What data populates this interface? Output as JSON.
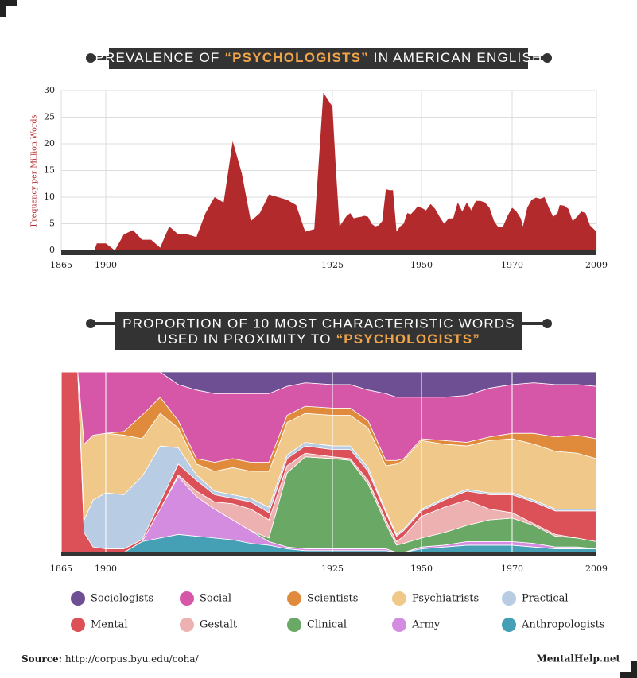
{
  "chart_data": [
    {
      "type": "area",
      "title": [
        "PREVALENCE OF",
        "“PSYCHOLOGISTS”",
        "IN AMERICAN ENGLISH"
      ],
      "ylabel": "Frequency per Million Words",
      "color": "#b22a2c",
      "grid": true,
      "x": [
        1865,
        1891,
        1893,
        1900,
        1901,
        1902,
        1903,
        1904,
        1905,
        1906,
        1907,
        1908,
        1909,
        1910,
        1911,
        1912,
        1913,
        1914,
        1915,
        1916,
        1917,
        1918,
        1919,
        1920,
        1921,
        1922,
        1923,
        1924,
        1925,
        1926,
        1927,
        1928,
        1929,
        1930,
        1931,
        1932,
        1933,
        1934,
        1935,
        1936,
        1937,
        1938,
        1939,
        1940,
        1941,
        1942,
        1943,
        1944,
        1945,
        1946,
        1947,
        1948,
        1949,
        1950,
        1951,
        1952,
        1953,
        1954,
        1955,
        1956,
        1957,
        1958,
        1959,
        1960,
        1961,
        1962,
        1963,
        1964,
        1965,
        1966,
        1967,
        1968,
        1969,
        1970,
        1972,
        1974,
        1975,
        1977,
        1979,
        1981,
        1983,
        1985,
        1987,
        1989,
        1991,
        1992,
        1994,
        1996,
        1998,
        2000,
        2002,
        2004,
        2006,
        2009
      ],
      "values": [
        0,
        0,
        1.3,
        1.3,
        0,
        3,
        3.8,
        2,
        2,
        0.5,
        4.5,
        3,
        3,
        2.5,
        7,
        10,
        9,
        20.5,
        14.5,
        5.5,
        7,
        10.5,
        10,
        9.5,
        8.5,
        3.5,
        4,
        29.6,
        27,
        15,
        4.5,
        5.5,
        6.5,
        7,
        6,
        6.2,
        6.3,
        6.5,
        6.3,
        5,
        4.5,
        4.7,
        5.5,
        11.5,
        11.3,
        11.3,
        3.5,
        4.5,
        5,
        7,
        6.8,
        7.5,
        8.3,
        8,
        7.5,
        8.7,
        7.8,
        6.3,
        5,
        6,
        6,
        9,
        7.3,
        9,
        7.5,
        9.3,
        9.3,
        9,
        8,
        5.5,
        4.3,
        4.5,
        6.5,
        8,
        7.3,
        6,
        4.5,
        8,
        9.5,
        9.9,
        9.7,
        10,
        8,
        6.3,
        7,
        8.5,
        8.4,
        7.8,
        5.5,
        6.3,
        7.3,
        7,
        4.7,
        3.5
      ],
      "xlim": [
        1865,
        2009
      ],
      "xticks": [
        1865,
        1900,
        1925,
        1950,
        1970,
        2009
      ],
      "ylim": [
        0,
        30
      ],
      "yticks": [
        0,
        5,
        10,
        15,
        20,
        25,
        30
      ]
    },
    {
      "type": "stacked_area",
      "title": [
        "PROPORTION OF 10 MOST CHARACTERISTIC WORDS",
        "USED IN PROXIMITY TO",
        "“PSYCHOLOGISTS”"
      ],
      "x": [
        1865,
        1878,
        1883,
        1890,
        1900,
        1902,
        1904,
        1906,
        1908,
        1910,
        1912,
        1914,
        1916,
        1918,
        1920,
        1922,
        1925,
        1930,
        1935,
        1940,
        1943,
        1945,
        1950,
        1955,
        1960,
        1965,
        1970,
        1980,
        1990,
        2000,
        2009
      ],
      "xlim": [
        1865,
        2009
      ],
      "xticks": [
        1865,
        1900,
        1925,
        1950,
        1970,
        2009
      ],
      "ylim": [
        0,
        100
      ],
      "series": [
        {
          "name": "Sociologists",
          "color": "#6e4f93",
          "values": [
            0,
            0,
            0,
            0,
            0,
            0,
            0,
            0,
            7,
            10,
            12,
            12,
            12,
            12,
            8,
            6,
            7,
            7,
            10,
            12,
            14,
            14,
            14,
            14,
            13,
            9,
            7,
            6,
            7,
            7,
            8
          ]
        },
        {
          "name": "Social",
          "color": "#d656a8",
          "values": [
            0,
            0,
            40,
            35,
            34,
            33,
            24,
            14,
            20,
            38,
            38,
            36,
            38,
            38,
            16,
            13,
            13,
            13,
            17,
            37,
            35,
            34,
            23,
            24,
            26,
            27,
            27,
            28,
            29,
            28,
            29
          ]
        },
        {
          "name": "Scientists",
          "color": "#e08a3c",
          "values": [
            0,
            0,
            0,
            0,
            0,
            2,
            13,
            9,
            4,
            3,
            5,
            5,
            5,
            5,
            4,
            4,
            4,
            4,
            4,
            3,
            2,
            1,
            1,
            2,
            2,
            2,
            3,
            6,
            8,
            10,
            11
          ]
        },
        {
          "name": "Psychiatrists",
          "color": "#f0c88a",
          "values": [
            0,
            0,
            42,
            36,
            33,
            33,
            21,
            18,
            11,
            6,
            11,
            15,
            15,
            20,
            18,
            16,
            17,
            17,
            22,
            25,
            39,
            38,
            38,
            30,
            24,
            29,
            30,
            31,
            32,
            31,
            28
          ]
        },
        {
          "name": "Practical",
          "color": "#b8cce4",
          "values": [
            0,
            0,
            7,
            26,
            31,
            30,
            35,
            31,
            9,
            3,
            2,
            2,
            2,
            3,
            2,
            2,
            2,
            2,
            2,
            1,
            1,
            1,
            1,
            1,
            1,
            1,
            1,
            1,
            1,
            1,
            1
          ]
        },
        {
          "name": "Mental",
          "color": "#dc5058",
          "values": [
            100,
            100,
            11,
            3,
            2,
            2,
            1,
            4,
            6,
            6,
            4,
            3,
            4,
            4,
            4,
            4,
            4,
            5,
            5,
            4,
            3,
            3,
            3,
            4,
            5,
            8,
            10,
            12,
            13,
            15,
            17
          ]
        },
        {
          "name": "Gestalt",
          "color": "#eeb1b1",
          "values": [
            0,
            0,
            0,
            0,
            0,
            0,
            0,
            0,
            1,
            3,
            4,
            9,
            12,
            10,
            4,
            2,
            1,
            1,
            2,
            2,
            2,
            4,
            12,
            14,
            14,
            6,
            3,
            1,
            1,
            0,
            0
          ]
        },
        {
          "name": "Clinical",
          "color": "#6aa866",
          "values": [
            0,
            0,
            0,
            0,
            0,
            0,
            0,
            0,
            0,
            0,
            0,
            0,
            0,
            2,
            41,
            51,
            50,
            49,
            36,
            14,
            4,
            5,
            5,
            7,
            9,
            12,
            13,
            10,
            6,
            5,
            4
          ]
        },
        {
          "name": "Army",
          "color": "#d38ce0",
          "values": [
            0,
            0,
            0,
            0,
            0,
            0,
            0,
            16,
            32,
            22,
            16,
            11,
            7,
            2,
            1,
            1,
            1,
            1,
            1,
            1,
            0,
            0,
            1,
            1,
            2,
            2,
            2,
            2,
            1,
            1,
            0
          ]
        },
        {
          "name": "Anthropologists",
          "color": "#459fb5",
          "values": [
            0,
            0,
            0,
            0,
            0,
            0,
            6,
            8,
            10,
            9,
            8,
            7,
            5,
            4,
            2,
            1,
            1,
            1,
            1,
            1,
            0,
            0,
            2,
            3,
            4,
            4,
            4,
            3,
            2,
            2,
            2
          ]
        }
      ]
    }
  ],
  "footer": {
    "source_label": "Source:",
    "source_url": "http://corpus.byu.edu/coha/",
    "brand": "MentalHelp.net"
  }
}
